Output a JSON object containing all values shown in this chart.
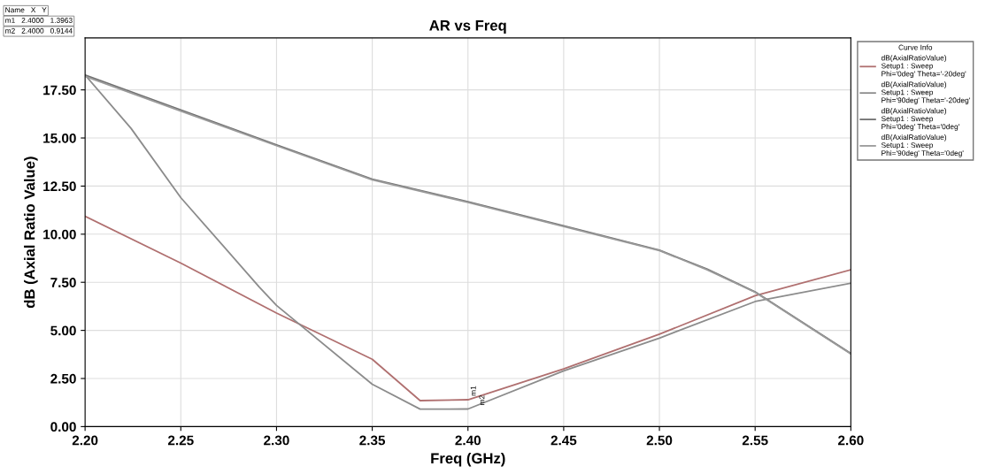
{
  "chart_data": {
    "type": "line",
    "title": "AR vs Freq",
    "xlabel": "Freq (GHz)",
    "ylabel": "dB (Axial Ratio Value)",
    "legend_title": "Curve Info",
    "legend": "top right",
    "grid": true,
    "marker": "none",
    "line_style": "solid",
    "xlim": [
      2.2,
      2.6
    ],
    "xticks": [
      {
        "value": 2.2,
        "label": "2.20"
      },
      {
        "value": 2.25,
        "label": "2.25"
      },
      {
        "value": 2.3,
        "label": "2.30"
      },
      {
        "value": 2.35,
        "label": "2.35"
      },
      {
        "value": 2.4,
        "label": "2.40"
      },
      {
        "value": 2.45,
        "label": "2.45"
      },
      {
        "value": 2.5,
        "label": "2.50"
      },
      {
        "value": 2.55,
        "label": "2.55"
      },
      {
        "value": 2.6,
        "label": "2.60"
      }
    ],
    "ylim": [
      0,
      20.2
    ],
    "yticks": [
      {
        "value": 0,
        "label": "0.00"
      },
      {
        "value": 2.5,
        "label": "2.50"
      },
      {
        "value": 5,
        "label": "5.00"
      },
      {
        "value": 7.5,
        "label": "7.50"
      },
      {
        "value": 10,
        "label": "10.00"
      },
      {
        "value": 12.5,
        "label": "12.50"
      },
      {
        "value": 15,
        "label": "15.00"
      },
      {
        "value": 17.5,
        "label": "17.50"
      }
    ],
    "series": [
      {
        "name": "dB(AxialRatioValue)\nSetup1 : Sweep\nPhi='0deg' Theta='-20deg'",
        "color": "#b07070",
        "x": [
          2.2,
          2.25,
          2.3,
          2.35,
          2.375,
          2.4,
          2.45,
          2.5,
          2.55,
          2.6
        ],
        "values": [
          10.93,
          8.5,
          5.9,
          3.5,
          1.35,
          1.3963,
          3.0,
          4.8,
          6.8,
          8.15
        ]
      },
      {
        "name": "dB(AxialRatioValue)\nSetup1 : Sweep\nPhi='90deg' Theta='-20deg'",
        "color": "#8c8c8c",
        "x": [
          2.2,
          2.224,
          2.25,
          2.291,
          2.3,
          2.35,
          2.375,
          2.4,
          2.45,
          2.5,
          2.55,
          2.6
        ],
        "values": [
          18.27,
          15.5,
          11.9,
          7.25,
          6.3,
          2.2,
          0.91,
          0.9144,
          2.9,
          4.6,
          6.5,
          7.45
        ]
      },
      {
        "name": "dB(AxialRatioValue)\nSetup1 : Sweep\nPhi='0deg' Theta='0deg'",
        "color": "#707070",
        "x": [
          2.2,
          2.25,
          2.3,
          2.35,
          2.4,
          2.45,
          2.5,
          2.525,
          2.55,
          2.6
        ],
        "values": [
          18.27,
          16.46,
          14.64,
          12.86,
          11.69,
          10.43,
          9.17,
          8.18,
          7.0,
          3.8
        ]
      },
      {
        "name": "dB(AxialRatioValue)\nSetup1 : Sweep\nPhi='90deg' Theta='0deg'",
        "color": "#9a9a9a",
        "x": [
          2.2,
          2.25,
          2.3,
          2.35,
          2.4,
          2.45,
          2.5,
          2.525,
          2.55,
          2.6
        ],
        "values": [
          18.2,
          16.4,
          14.6,
          12.82,
          11.65,
          10.4,
          9.15,
          8.15,
          6.98,
          3.78
        ]
      }
    ],
    "annotations": [
      "Name   X   Y",
      "m1   2.4000   1.3963",
      "m2   2.4000   0.9144",
      {
        "text": "m1",
        "x": 2.4,
        "y": 1.3963
      },
      {
        "text": "m2",
        "x": 2.4,
        "y": 0.9144
      }
    ]
  }
}
